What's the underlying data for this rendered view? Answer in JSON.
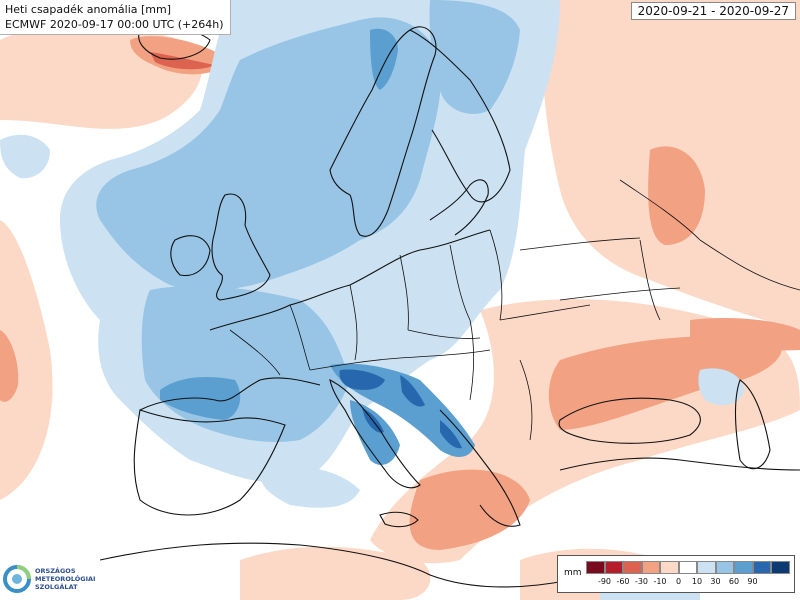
{
  "title": {
    "line1": "Heti csapadék anomália [mm]",
    "line2": "ECMWF 2020-09-17 00:00 UTC (+264h)"
  },
  "date_range": "2020-09-21 - 2020-09-27",
  "logo": {
    "line1": "ORSZÁGOS",
    "line2": "METEOROLÓGIAI",
    "line3": "SZOLGÁLAT"
  },
  "legend": {
    "unit": "mm",
    "ticks": [
      "-90",
      "-60",
      "-30",
      "-10",
      "0",
      "10",
      "30",
      "60",
      "90"
    ],
    "colors": [
      "#7a0b1f",
      "#b51f2b",
      "#dd6351",
      "#f2a283",
      "#fcd9c6",
      "#ffffff",
      "#cce2f2",
      "#98c5e5",
      "#5b9fd1",
      "#2767ad",
      "#0d3a73"
    ]
  },
  "colors": {
    "background": "#ffffff",
    "border": "#111111"
  }
}
